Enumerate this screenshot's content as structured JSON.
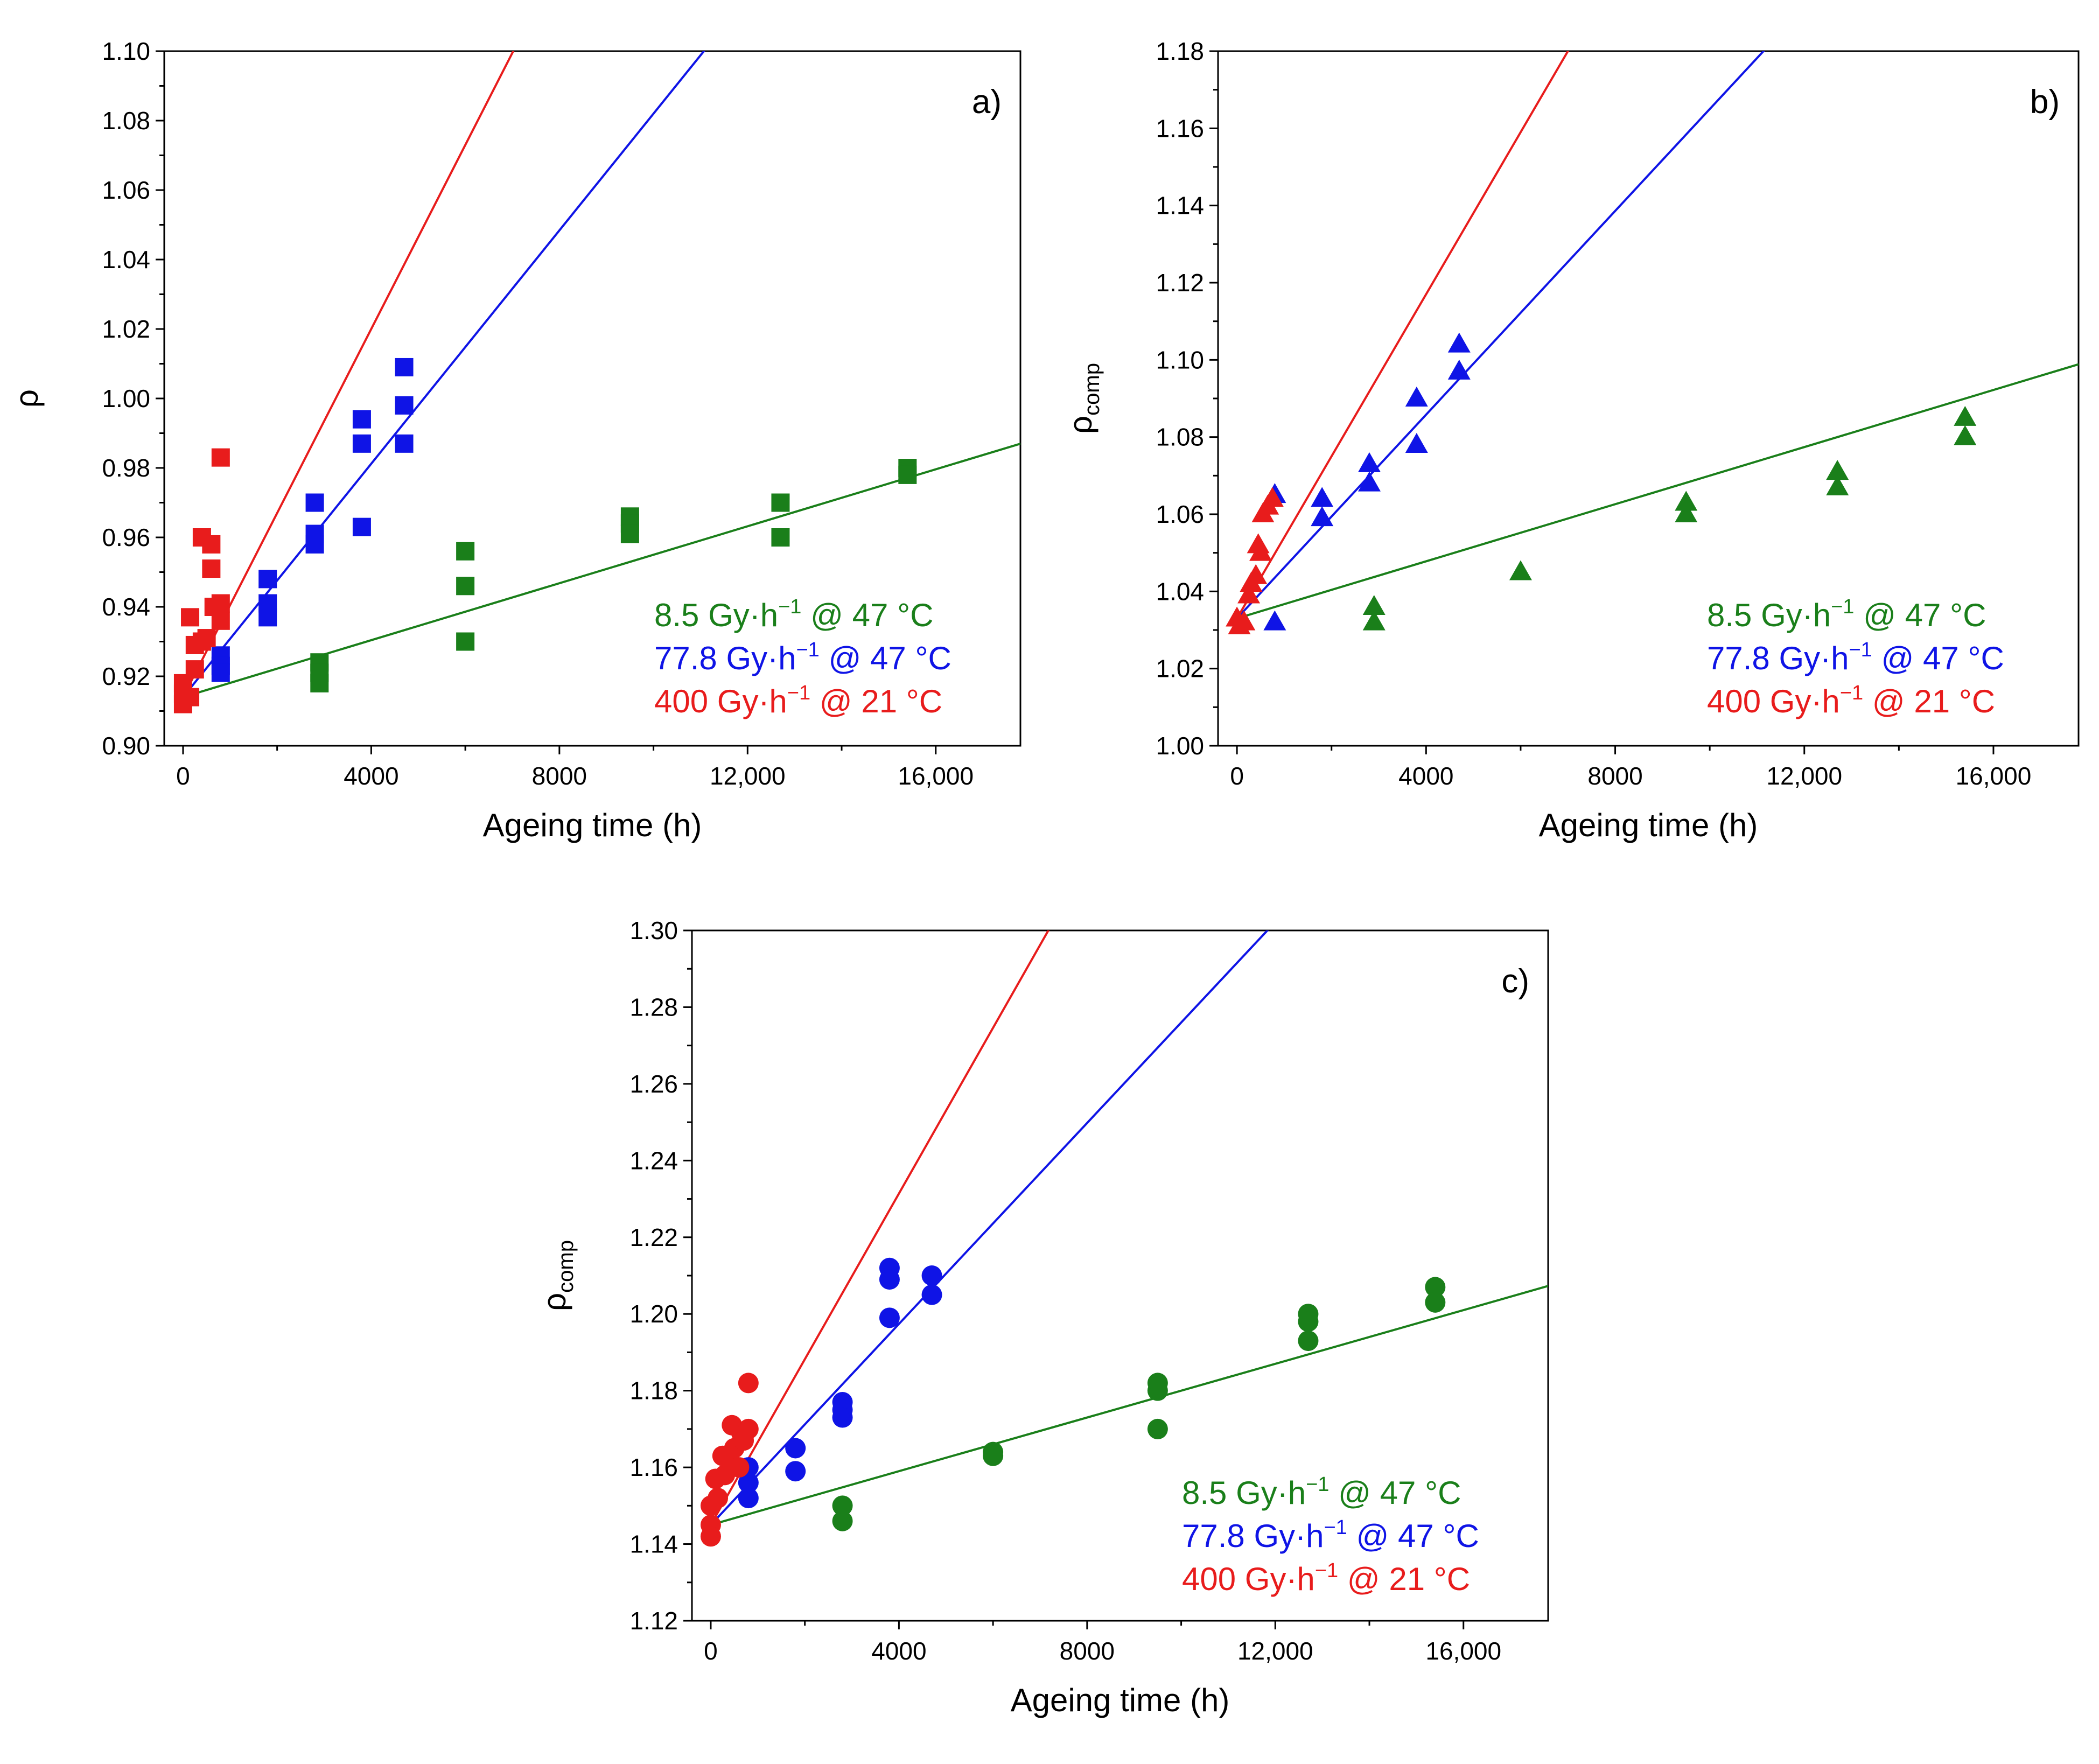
{
  "colors": {
    "green": "#1a7f1a",
    "blue": "#0f14e6",
    "red": "#e81c1c"
  },
  "legend": [
    {
      "dose": "8.5",
      "unit": "Gy·h",
      "exp": "−1",
      "temp": "@ 47 °C",
      "color": "#1a7f1a"
    },
    {
      "dose": "77.8",
      "unit": "Gy·h",
      "exp": "−1",
      "temp": "@ 47 °C",
      "color": "#0f14e6"
    },
    {
      "dose": "400",
      "unit": "Gy·h",
      "exp": "−1",
      "temp": "@ 21 °C",
      "color": "#e81c1c"
    }
  ],
  "chart_data": [
    {
      "type": "scatter",
      "panel_label": "a)",
      "marker": "square",
      "xlabel": "Ageing time (h)",
      "ylabel": "ρ",
      "ylabel_sub": "",
      "xlim": [
        -400,
        17800
      ],
      "ylim": [
        0.9,
        1.1
      ],
      "xticks": [
        0,
        4000,
        8000,
        12000,
        16000
      ],
      "xtick_labels": [
        "0",
        "4000",
        "8000",
        "12,000",
        "16,000"
      ],
      "yticks": [
        0.9,
        0.92,
        0.94,
        0.96,
        0.98,
        1.0,
        1.02,
        1.04,
        1.06,
        1.08,
        1.1
      ],
      "ytick_labels": [
        "0.90",
        "0.92",
        "0.94",
        "0.96",
        "0.98",
        "1.00",
        "1.02",
        "1.04",
        "1.06",
        "1.08",
        "1.10"
      ],
      "series": [
        {
          "color": "#1a7f1a",
          "points": [
            [
              2900,
              0.924
            ],
            [
              2900,
              0.921
            ],
            [
              2900,
              0.918
            ],
            [
              6000,
              0.956
            ],
            [
              6000,
              0.946
            ],
            [
              6000,
              0.93
            ],
            [
              9500,
              0.966
            ],
            [
              9500,
              0.964
            ],
            [
              9500,
              0.961
            ],
            [
              12700,
              0.97
            ],
            [
              12700,
              0.96
            ],
            [
              15400,
              0.98
            ],
            [
              15400,
              0.978
            ]
          ],
          "fit": {
            "intercept": 0.914,
            "slope": 4.1e-06
          }
        },
        {
          "color": "#0f14e6",
          "points": [
            [
              800,
              0.926
            ],
            [
              800,
              0.923
            ],
            [
              800,
              0.921
            ],
            [
              1800,
              0.948
            ],
            [
              1800,
              0.941
            ],
            [
              1800,
              0.937
            ],
            [
              2800,
              0.97
            ],
            [
              2800,
              0.961
            ],
            [
              2800,
              0.958
            ],
            [
              3800,
              0.994
            ],
            [
              3800,
              0.987
            ],
            [
              3800,
              0.963
            ],
            [
              4700,
              1.009
            ],
            [
              4700,
              0.998
            ],
            [
              4700,
              0.987
            ]
          ],
          "fit": {
            "intercept": 0.914,
            "slope": 1.68e-05
          }
        },
        {
          "color": "#e81c1c",
          "points": [
            [
              0,
              0.918
            ],
            [
              0,
              0.915
            ],
            [
              0,
              0.912
            ],
            [
              150,
              0.937
            ],
            [
              150,
              0.914
            ],
            [
              250,
              0.929
            ],
            [
              250,
              0.922
            ],
            [
              400,
              0.96
            ],
            [
              400,
              0.93
            ],
            [
              500,
              0.931
            ],
            [
              600,
              0.958
            ],
            [
              600,
              0.951
            ],
            [
              650,
              0.94
            ],
            [
              800,
              0.983
            ],
            [
              800,
              0.941
            ],
            [
              800,
              0.936
            ]
          ],
          "fit": {
            "intercept": 0.914,
            "slope": 2.65e-05
          }
        }
      ]
    },
    {
      "type": "scatter",
      "panel_label": "b)",
      "marker": "triangle",
      "xlabel": "Ageing time (h)",
      "ylabel": "ρ",
      "ylabel_sub": "comp",
      "xlim": [
        -400,
        17800
      ],
      "ylim": [
        1.0,
        1.18
      ],
      "xticks": [
        0,
        4000,
        8000,
        12000,
        16000
      ],
      "xtick_labels": [
        "0",
        "4000",
        "8000",
        "12,000",
        "16,000"
      ],
      "yticks": [
        1.0,
        1.02,
        1.04,
        1.06,
        1.08,
        1.1,
        1.12,
        1.14,
        1.16,
        1.18
      ],
      "ytick_labels": [
        "1.00",
        "1.02",
        "1.04",
        "1.06",
        "1.08",
        "1.10",
        "1.12",
        "1.14",
        "1.16",
        "1.18"
      ],
      "series": [
        {
          "color": "#1a7f1a",
          "points": [
            [
              2900,
              1.036
            ],
            [
              2900,
              1.032
            ],
            [
              6000,
              1.045
            ],
            [
              9500,
              1.063
            ],
            [
              9500,
              1.06
            ],
            [
              12700,
              1.071
            ],
            [
              12700,
              1.067
            ],
            [
              15400,
              1.085
            ],
            [
              15400,
              1.08
            ]
          ],
          "fit": {
            "intercept": 1.033,
            "slope": 3.7e-06
          }
        },
        {
          "color": "#0f14e6",
          "points": [
            [
              800,
              1.065
            ],
            [
              800,
              1.032
            ],
            [
              1800,
              1.064
            ],
            [
              1800,
              1.059
            ],
            [
              2800,
              1.073
            ],
            [
              2800,
              1.068
            ],
            [
              3800,
              1.09
            ],
            [
              3800,
              1.078
            ],
            [
              4700,
              1.104
            ],
            [
              4700,
              1.097
            ]
          ],
          "fit": {
            "intercept": 1.033,
            "slope": 1.32e-05
          }
        },
        {
          "color": "#e81c1c",
          "points": [
            [
              0,
              1.033
            ],
            [
              50,
              1.031
            ],
            [
              150,
              1.032
            ],
            [
              250,
              1.039
            ],
            [
              300,
              1.042
            ],
            [
              400,
              1.044
            ],
            [
              450,
              1.052
            ],
            [
              500,
              1.05
            ],
            [
              550,
              1.06
            ],
            [
              650,
              1.062
            ],
            [
              750,
              1.064
            ]
          ],
          "fit": {
            "intercept": 1.033,
            "slope": 2.1e-05
          }
        }
      ]
    },
    {
      "type": "scatter",
      "panel_label": "c)",
      "marker": "circle",
      "xlabel": "Ageing time (h)",
      "ylabel": "ρ",
      "ylabel_sub": "comp",
      "xlim": [
        -400,
        17800
      ],
      "ylim": [
        1.12,
        1.3
      ],
      "xticks": [
        0,
        4000,
        8000,
        12000,
        16000
      ],
      "xtick_labels": [
        "0",
        "4000",
        "8000",
        "12,000",
        "16,000"
      ],
      "yticks": [
        1.12,
        1.14,
        1.16,
        1.18,
        1.2,
        1.22,
        1.24,
        1.26,
        1.28,
        1.3
      ],
      "ytick_labels": [
        "1.12",
        "1.14",
        "1.16",
        "1.18",
        "1.20",
        "1.22",
        "1.24",
        "1.26",
        "1.28",
        "1.30"
      ],
      "series": [
        {
          "color": "#1a7f1a",
          "points": [
            [
              2800,
              1.15
            ],
            [
              2800,
              1.146
            ],
            [
              6000,
              1.164
            ],
            [
              6000,
              1.163
            ],
            [
              9500,
              1.182
            ],
            [
              9500,
              1.18
            ],
            [
              9500,
              1.17
            ],
            [
              12700,
              1.2
            ],
            [
              12700,
              1.198
            ],
            [
              12700,
              1.193
            ],
            [
              15400,
              1.207
            ],
            [
              15400,
              1.203
            ]
          ],
          "fit": {
            "intercept": 1.145,
            "slope": 3.5e-06
          }
        },
        {
          "color": "#0f14e6",
          "points": [
            [
              800,
              1.16
            ],
            [
              800,
              1.156
            ],
            [
              800,
              1.152
            ],
            [
              1800,
              1.165
            ],
            [
              1800,
              1.159
            ],
            [
              2800,
              1.177
            ],
            [
              2800,
              1.175
            ],
            [
              2800,
              1.173
            ],
            [
              3800,
              1.212
            ],
            [
              3800,
              1.209
            ],
            [
              3800,
              1.199
            ],
            [
              4700,
              1.21
            ],
            [
              4700,
              1.205
            ]
          ],
          "fit": {
            "intercept": 1.145,
            "slope": 1.31e-05
          }
        },
        {
          "color": "#e81c1c",
          "points": [
            [
              0,
              1.15
            ],
            [
              0,
              1.145
            ],
            [
              0,
              1.142
            ],
            [
              100,
              1.157
            ],
            [
              150,
              1.152
            ],
            [
              250,
              1.163
            ],
            [
              300,
              1.158
            ],
            [
              400,
              1.162
            ],
            [
              450,
              1.171
            ],
            [
              500,
              1.165
            ],
            [
              600,
              1.16
            ],
            [
              650,
              1.169
            ],
            [
              700,
              1.167
            ],
            [
              800,
              1.182
            ],
            [
              800,
              1.17
            ]
          ],
          "fit": {
            "intercept": 1.145,
            "slope": 2.16e-05
          }
        }
      ]
    }
  ]
}
